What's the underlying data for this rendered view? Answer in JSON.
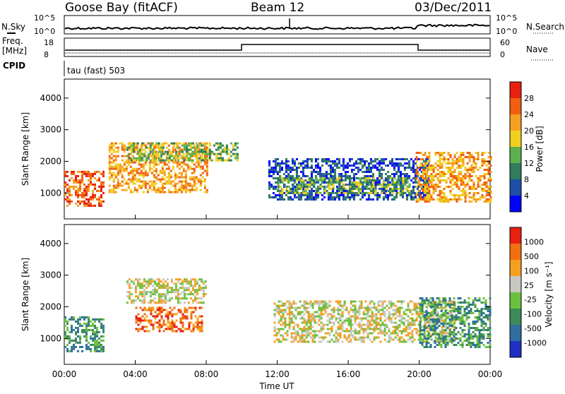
{
  "header": {
    "station": "Goose Bay (fitACF)",
    "beam": "Beam 12",
    "date": "03/Dec/2011"
  },
  "top_panels": {
    "nsky_label": "N.Sky",
    "nsearch_label": "N.Search",
    "nsky_ticks": [
      "10^5",
      "10^0"
    ],
    "nsearch_ticks": [
      "10^5",
      "10^0"
    ],
    "freq_label_1": "Freq.",
    "freq_label_2": "[MHz]",
    "freq_ticks": [
      "18",
      "8"
    ],
    "nave_label": "Nave",
    "nave_ticks": [
      "60",
      "0"
    ],
    "cpid_label": "CPID",
    "cpid_text": "tau (fast) 503"
  },
  "chart_data": [
    {
      "type": "heatmap",
      "name": "power",
      "ylabel": "Slant Range [km]",
      "ylim": [
        180,
        4600
      ],
      "yticks": [
        1000,
        2000,
        3000,
        4000
      ],
      "xticks": [
        "00:00",
        "04:00",
        "08:00",
        "12:00",
        "16:00",
        "20:00",
        "00:00"
      ],
      "colorbar_label": "Power [dB]",
      "colorbar_ticks": [
        "28",
        "24",
        "20",
        "16",
        "12",
        "8",
        "4"
      ],
      "colors": [
        "#0000ff",
        "#1e4fa8",
        "#2f7d5a",
        "#5db04c",
        "#f0d020",
        "#f5a020",
        "#f06010",
        "#e82010"
      ],
      "regions": [
        {
          "t0": 0.0,
          "t1": 2.2,
          "r0": 600,
          "r1": 1700,
          "level": 6
        },
        {
          "t0": 2.5,
          "t1": 8.0,
          "r0": 1000,
          "r1": 2600,
          "level": 5
        },
        {
          "t0": 3.5,
          "t1": 9.8,
          "r0": 2000,
          "r1": 2600,
          "level": 3
        },
        {
          "t0": 11.5,
          "t1": 20.5,
          "r0": 800,
          "r1": 2100,
          "level": 1
        },
        {
          "t0": 12.0,
          "t1": 19.5,
          "r0": 1000,
          "r1": 1500,
          "level": 3
        },
        {
          "t0": 19.8,
          "t1": 24.0,
          "r0": 700,
          "r1": 2300,
          "level": 5
        }
      ]
    },
    {
      "type": "heatmap",
      "name": "velocity",
      "ylabel": "Slant Range [km]",
      "ylim": [
        180,
        4600
      ],
      "yticks": [
        1000,
        2000,
        3000,
        4000
      ],
      "xticks": [
        "00:00",
        "04:00",
        "08:00",
        "12:00",
        "16:00",
        "20:00",
        "00:00"
      ],
      "xlabel": "Time UT",
      "colorbar_label": "Velocity [m s⁻¹]",
      "colorbar_ticks": [
        "1000",
        "500",
        "100",
        "25",
        "-25",
        "-100",
        "-500",
        "-1000"
      ],
      "colors": [
        "#2030c0",
        "#2f6fa0",
        "#3a8a5a",
        "#6cc040",
        "#c8c8c0",
        "#f5a020",
        "#f07010",
        "#e82010"
      ],
      "regions": [
        {
          "t0": 0.0,
          "t1": 2.2,
          "r0": 600,
          "r1": 1700,
          "level": 2
        },
        {
          "t0": 3.5,
          "t1": 8.0,
          "r0": 2100,
          "r1": 2900,
          "level": 4
        },
        {
          "t0": 4.0,
          "t1": 7.8,
          "r0": 1200,
          "r1": 2000,
          "level": 6
        },
        {
          "t0": 11.8,
          "t1": 22.0,
          "r0": 900,
          "r1": 2200,
          "level": 4
        },
        {
          "t0": 20.0,
          "t1": 24.0,
          "r0": 700,
          "r1": 2300,
          "level": 2
        }
      ]
    }
  ]
}
